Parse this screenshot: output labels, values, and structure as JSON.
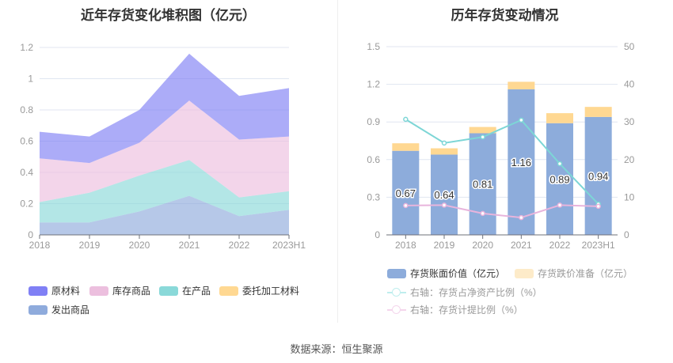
{
  "chart_data": [
    {
      "type": "area",
      "title": "近年存货变化堆积图（亿元）",
      "categories": [
        "2018",
        "2019",
        "2020",
        "2021",
        "2022",
        "2023H1"
      ],
      "ylim": [
        0,
        1.2
      ],
      "yticks": [
        "0",
        "0.2",
        "0.4",
        "0.6",
        "0.8",
        "1",
        "1.2"
      ],
      "series": [
        {
          "name": "发出商品",
          "color": "#8fabdc",
          "values": [
            0.08,
            0.08,
            0.15,
            0.25,
            0.12,
            0.16
          ]
        },
        {
          "name": "在产品",
          "color": "#8ad9d9",
          "values": [
            0.13,
            0.19,
            0.23,
            0.23,
            0.12,
            0.12
          ]
        },
        {
          "name": "委托加工材料",
          "color": "#ffd892",
          "values": [
            0,
            0,
            0,
            0,
            0,
            0
          ]
        },
        {
          "name": "库存商品",
          "color": "#ecbfde",
          "values": [
            0.28,
            0.19,
            0.21,
            0.38,
            0.37,
            0.35
          ]
        },
        {
          "name": "原材料",
          "color": "#8080f5",
          "values": [
            0.17,
            0.17,
            0.21,
            0.3,
            0.28,
            0.31
          ]
        }
      ],
      "legend": [
        "原材料",
        "库存商品",
        "在产品",
        "委托加工材料",
        "发出商品"
      ],
      "legend_colors": [
        "#8080f5",
        "#ecbfde",
        "#8ad9d9",
        "#ffd892",
        "#8fabdc"
      ]
    },
    {
      "type": "bar+line",
      "title": "历年存货变动情况",
      "categories": [
        "2018",
        "2019",
        "2020",
        "2021",
        "2022",
        "2023H1"
      ],
      "ylim": [
        0,
        1.5
      ],
      "y2lim": [
        0,
        50
      ],
      "yticks": [
        "0",
        "0.3",
        "0.6",
        "0.9",
        "1.2",
        "1.5"
      ],
      "y2ticks": [
        "0",
        "10",
        "20",
        "30",
        "40",
        "50"
      ],
      "bars": [
        {
          "name": "存货账面价值（亿元）",
          "color": "#8dacdb",
          "values": [
            0.67,
            0.64,
            0.81,
            1.16,
            0.89,
            0.94
          ],
          "labels": [
            "0.67",
            "0.64",
            "0.81",
            "1.16",
            "0.89",
            "0.94"
          ]
        },
        {
          "name": "存货跌价准备（亿元）",
          "color": "#ffd892",
          "values": [
            0.06,
            0.05,
            0.05,
            0.06,
            0.08,
            0.08
          ]
        }
      ],
      "lines": [
        {
          "name": "右轴：存货占净资产比例（%）",
          "color": "#7dd6d6",
          "values": [
            30.7,
            24.4,
            26.0,
            30.5,
            18.9,
            8.2
          ]
        },
        {
          "name": "右轴：存货计提比例（%）",
          "color": "#e8b4dc",
          "values": [
            7.8,
            7.9,
            5.7,
            4.6,
            7.9,
            7.6
          ]
        }
      ]
    }
  ],
  "source": "数据来源：恒生聚源"
}
